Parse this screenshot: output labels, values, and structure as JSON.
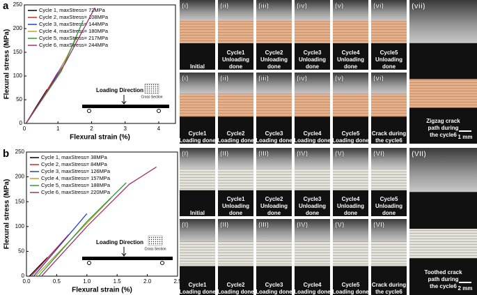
{
  "chart_data": [
    {
      "type": "line",
      "panel_label": "a",
      "xlabel": "Flexural strain (%)",
      "ylabel": "Flexural stress (MPa)",
      "xlim": [
        0,
        4.5
      ],
      "ylim": [
        0,
        250
      ],
      "xticks": [
        0,
        1,
        2,
        3,
        4
      ],
      "yticks": [
        0,
        50,
        100,
        150,
        200,
        250
      ],
      "inset": {
        "loading": "Loading Direction",
        "section": "Cross Section"
      },
      "series": [
        {
          "name": "Cycle 1, maxStress= 72MPa",
          "color": "#000000",
          "x": [
            0.05,
            0.35,
            0.68
          ],
          "values": [
            0,
            35,
            72
          ]
        },
        {
          "name": "Cycle 2, maxStress= 108MPa",
          "color": "#e0201e",
          "x": [
            0.05,
            0.55,
            1.0
          ],
          "values": [
            0,
            55,
            108
          ]
        },
        {
          "name": "Cycle 3, maxStress= 144MPa",
          "color": "#2040d0",
          "x": [
            0.05,
            0.7,
            1.3
          ],
          "values": [
            0,
            70,
            144
          ]
        },
        {
          "name": "Cycle 4, maxStress= 180MPa",
          "color": "#c89a30",
          "x": [
            0.05,
            0.9,
            1.55
          ],
          "values": [
            0,
            90,
            180
          ]
        },
        {
          "name": "Cycle 5, maxStress= 217MPa",
          "color": "#2e9a3a",
          "x": [
            0.05,
            1.1,
            1.75
          ],
          "values": [
            0,
            110,
            217
          ]
        },
        {
          "name": "Cycle 6, maxStress= 244MPa",
          "color": "#a03070",
          "x": [
            0.05,
            1.2,
            2.1
          ],
          "values": [
            0,
            125,
            244
          ]
        }
      ]
    },
    {
      "type": "line",
      "panel_label": "b",
      "xlabel": "Flexural strain (%)",
      "ylabel": "Flexural stress (MPa)",
      "xlim": [
        0,
        2.5
      ],
      "ylim": [
        0,
        250
      ],
      "xticks": [
        {
          "value": 0,
          "label": "0.0"
        },
        0.5,
        {
          "value": 1,
          "label": "1.0"
        },
        1.5,
        {
          "value": 2,
          "label": "2.0"
        },
        2.5
      ],
      "yticks": [
        0,
        50,
        100,
        150,
        200,
        250
      ],
      "inset": {
        "loading": "Loading Direction",
        "section": "Cross Section"
      },
      "series": [
        {
          "name": "Cycle 1, maxStress= 38MPa",
          "color": "#000000",
          "x": [
            0.05,
            0.35
          ],
          "values": [
            0,
            38
          ]
        },
        {
          "name": "Cycle 2, maxStress= 84MPa",
          "color": "#e0201e",
          "x": [
            0.08,
            0.7
          ],
          "values": [
            0,
            84
          ]
        },
        {
          "name": "Cycle 3, maxStress= 126MPa",
          "color": "#2040d0",
          "x": [
            0.12,
            1.0
          ],
          "values": [
            0,
            126
          ]
        },
        {
          "name": "Cycle 4, maxStress= 157MPa",
          "color": "#c89a30",
          "x": [
            0.15,
            1.4
          ],
          "values": [
            0,
            157
          ]
        },
        {
          "name": "Cycle 5, maxStress= 188MPa",
          "color": "#2e9a3a",
          "x": [
            0.2,
            1.0,
            1.65
          ],
          "values": [
            0,
            110,
            188
          ]
        },
        {
          "name": "Cycle 6, maxStress= 220MPa",
          "color": "#a03070",
          "x": [
            0.25,
            1.0,
            1.7,
            2.15
          ],
          "values": [
            0,
            100,
            185,
            220
          ]
        }
      ]
    }
  ],
  "photos": [
    {
      "rows": [
        [
          {
            "label": "(i)",
            "lines": [
              "Initial"
            ]
          },
          {
            "label": "(ii)",
            "lines": [
              "Cycle1",
              "Unloading",
              "done"
            ]
          },
          {
            "label": "(iii)",
            "lines": [
              "Cycle2",
              "Unloading",
              "done"
            ]
          },
          {
            "label": "(iv)",
            "lines": [
              "Cycle3",
              "Unloading",
              "done"
            ]
          },
          {
            "label": "(v)",
            "lines": [
              "Cycle4",
              "Unloading",
              "done"
            ]
          },
          {
            "label": "(vi)",
            "lines": [
              "Cycle5",
              "Unloading",
              "done"
            ]
          }
        ],
        [
          {
            "label": "(i)",
            "lines": [
              "Cycle1",
              "Loading done"
            ]
          },
          {
            "label": "(ii)",
            "lines": [
              "Cycle2",
              "Loading done"
            ]
          },
          {
            "label": "(iii)",
            "lines": [
              "Cycle3",
              "Loading done"
            ]
          },
          {
            "label": "(iv)",
            "lines": [
              "Cycle4",
              "Loading done"
            ]
          },
          {
            "label": "(v)",
            "lines": [
              "Cycle5",
              "Loading done"
            ]
          },
          {
            "label": "(vi)",
            "lines": [
              "Crack during",
              "the cycle6"
            ]
          }
        ]
      ],
      "large": {
        "label": "(vii)",
        "lines": [
          "Zigzag crack",
          "path during",
          "the cycle6"
        ],
        "scale": "1 mm"
      }
    },
    {
      "rows": [
        [
          {
            "label": "(I)",
            "lines": [
              "Initial"
            ]
          },
          {
            "label": "(II)",
            "lines": [
              "Cycle1",
              "Unloading",
              "done"
            ]
          },
          {
            "label": "(III)",
            "lines": [
              "Cycle2",
              "Unloading",
              "done"
            ]
          },
          {
            "label": "(IV)",
            "lines": [
              "Cycle3",
              "Unloading",
              "done"
            ]
          },
          {
            "label": "(V)",
            "lines": [
              "Cycle4",
              "Unloading",
              "done"
            ]
          },
          {
            "label": "(VI)",
            "lines": [
              "Cycle5",
              "Unloading",
              "done"
            ]
          }
        ],
        [
          {
            "label": "(I)",
            "lines": [
              "Cycle1",
              "Loading done"
            ]
          },
          {
            "label": "(II)",
            "lines": [
              "Cycle2",
              "Loading done"
            ]
          },
          {
            "label": "(III)",
            "lines": [
              "Cycle3",
              "Loading done"
            ]
          },
          {
            "label": "(IV)",
            "lines": [
              "Cycle4",
              "Loading done"
            ]
          },
          {
            "label": "(V)",
            "lines": [
              "Cycle5",
              "Loading done"
            ]
          },
          {
            "label": "(VI)",
            "lines": [
              "Crack during",
              "the cycle6"
            ]
          }
        ]
      ],
      "large": {
        "label": "(VII)",
        "lines": [
          "Toothed crack",
          "path during",
          "the cycle6"
        ],
        "scale": "2 mm"
      }
    }
  ]
}
